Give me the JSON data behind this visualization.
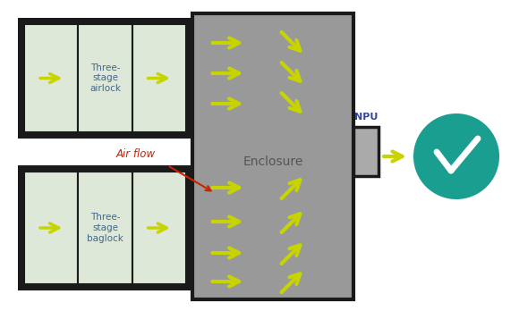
{
  "bg_color": "#ffffff",
  "enclosure_color": "#999999",
  "enclosure_border": "#1a1a1a",
  "airlock_color": "#dde8d8",
  "airlock_border": "#1a1a1a",
  "npu_color": "#aaaaaa",
  "npu_border": "#1a1a1a",
  "arrow_color": "#c8d400",
  "teal_color": "#1a9e8f",
  "airflow_label_color": "#cc2200",
  "enclosure_label_color": "#555555",
  "npu_label_color": "#334499",
  "airlock_top_label": "Three-\nstage\nairlock",
  "airlock_bot_label": "Three-\nstage\nbaglock",
  "airflow_label": "Air flow",
  "enclosure_label": "Enclosure",
  "npu_label": "NPU"
}
